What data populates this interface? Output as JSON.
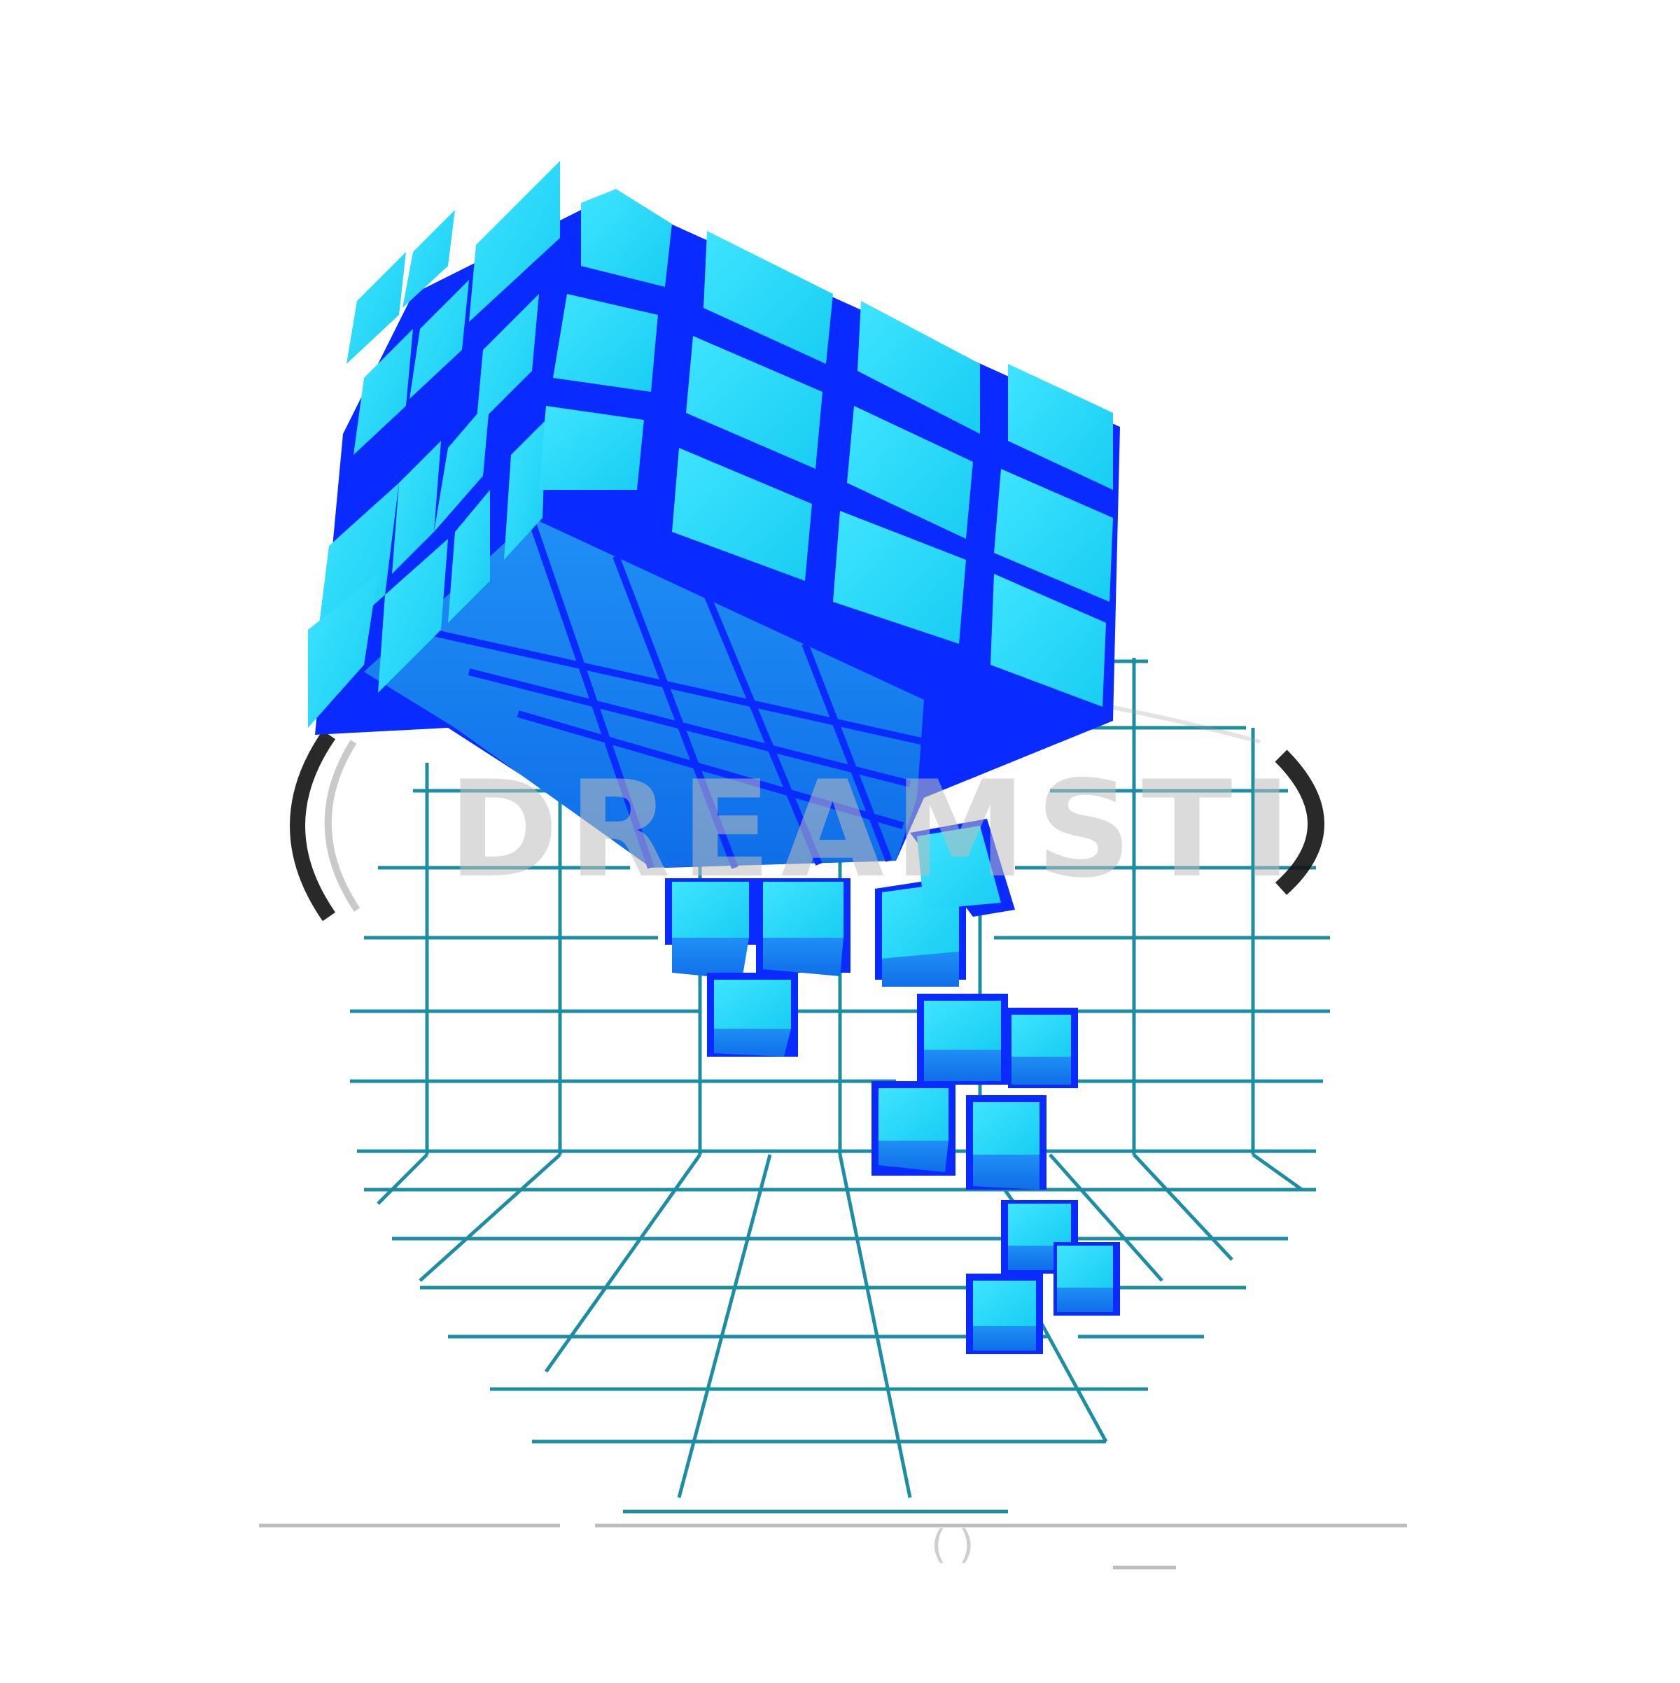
{
  "image": {
    "subject": "3d-blue-cube-dissolving-over-teal-wireframe-grid",
    "colors": {
      "background": "#ffffff",
      "cube_top": "#22d6f5",
      "cube_side": "#1580ef",
      "cube_edge": "#0a2bff",
      "grid_line": "#1c8ea3",
      "watermark_ring": "#111111",
      "watermark_text": "#bdbdbd"
    }
  },
  "watermark": {
    "text": "DREAMSTIME",
    "subtext": "( )"
  }
}
